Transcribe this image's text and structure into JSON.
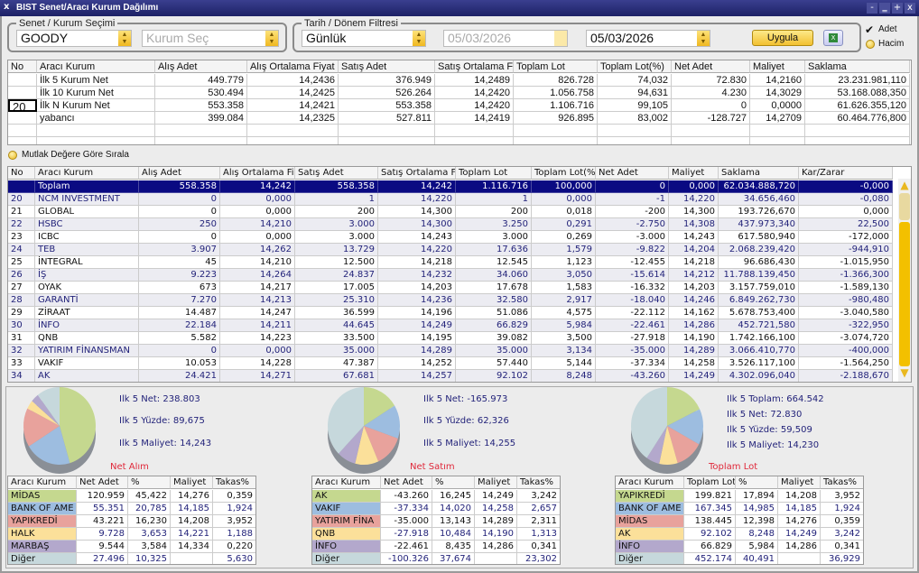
{
  "window": {
    "title": "BIST Senet/Aracı Kurum Dağılımı",
    "close": "x",
    "controls": [
      "-",
      "‗",
      "+",
      "x"
    ]
  },
  "filters": {
    "stock_group_label": "Senet / Kurum Seçimi",
    "stock": "GOODY",
    "broker_placeholder": "Kurum Seç",
    "date_group_label": "Tarih / Dönem Filtresi",
    "period": "Günlük",
    "start_date": "05/03/2026",
    "end_date": "05/03/2026",
    "apply_label": "Uygula",
    "excel_icon": "excel-icon",
    "adet_label": "Adet",
    "adet_checked": true,
    "hacim_label": "Hacim"
  },
  "summary_table": {
    "columns": [
      "No",
      "Aracı Kurum",
      "Alış Adet",
      "Alış Ortalama Fiyat",
      "Satış Adet",
      "Satış Ortalama Fiyat",
      "Toplam Lot",
      "Toplam Lot(%)",
      "Net Adet",
      "Maliyet",
      "Saklama"
    ],
    "rows": [
      [
        "",
        "İlk 5 Kurum Net",
        "449.779",
        "14,2436",
        "376.949",
        "14,2489",
        "826.728",
        "74,032",
        "72.830",
        "14,2160",
        "23.231.981,110"
      ],
      [
        "",
        "İlk 10 Kurum Net",
        "530.494",
        "14,2425",
        "526.264",
        "14,2420",
        "1.056.758",
        "94,631",
        "4.230",
        "14,3029",
        "53.168.088,350"
      ],
      [
        "20",
        "İlk N Kurum Net",
        "553.358",
        "14,2421",
        "553.358",
        "14,2420",
        "1.106.716",
        "99,105",
        "0",
        "0,0000",
        "61.626.355,120"
      ],
      [
        "",
        "yabancı",
        "399.084",
        "14,2325",
        "527.811",
        "14,2419",
        "926.895",
        "83,002",
        "-128.727",
        "14,2709",
        "60.464.776,800"
      ]
    ]
  },
  "sort_option_label": "Mutlak Değere Göre Sırala",
  "broker_table": {
    "columns": [
      "No",
      "Aracı Kurum",
      "Alış Adet",
      "Alış Ortalama Fiy",
      "Satış Adet",
      "Satış Ortalama Fi",
      "Toplam Lot",
      "Toplam Lot(%",
      "Net Adet",
      "Maliyet",
      "Saklama",
      "Kar/Zarar"
    ],
    "rows": [
      [
        "",
        "Toplam",
        "558.358",
        "14,242",
        "558.358",
        "14,242",
        "1.116.716",
        "100,000",
        "0",
        "0,000",
        "62.034.888,720",
        "-0,000"
      ],
      [
        "20",
        "NCM INVESTMENT",
        "0",
        "0,000",
        "1",
        "14,220",
        "1",
        "0,000",
        "-1",
        "14,220",
        "34.656,460",
        "-0,080"
      ],
      [
        "21",
        "GLOBAL",
        "0",
        "0,000",
        "200",
        "14,300",
        "200",
        "0,018",
        "-200",
        "14,300",
        "193.726,670",
        "0,000"
      ],
      [
        "22",
        "HSBC",
        "250",
        "14,210",
        "3.000",
        "14,300",
        "3.250",
        "0,291",
        "-2.750",
        "14,308",
        "437.973,340",
        "22,500"
      ],
      [
        "23",
        "ICBC",
        "0",
        "0,000",
        "3.000",
        "14,243",
        "3.000",
        "0,269",
        "-3.000",
        "14,243",
        "617.580,940",
        "-172,000"
      ],
      [
        "24",
        "TEB",
        "3.907",
        "14,262",
        "13.729",
        "14,220",
        "17.636",
        "1,579",
        "-9.822",
        "14,204",
        "2.068.239,420",
        "-944,910"
      ],
      [
        "25",
        "İNTEGRAL",
        "45",
        "14,210",
        "12.500",
        "14,218",
        "12.545",
        "1,123",
        "-12.455",
        "14,218",
        "96.686,430",
        "-1.015,950"
      ],
      [
        "26",
        "İŞ",
        "9.223",
        "14,264",
        "24.837",
        "14,232",
        "34.060",
        "3,050",
        "-15.614",
        "14,212",
        "11.788.139,450",
        "-1.366,300"
      ],
      [
        "27",
        "OYAK",
        "673",
        "14,217",
        "17.005",
        "14,203",
        "17.678",
        "1,583",
        "-16.332",
        "14,203",
        "3.157.759,010",
        "-1.589,130"
      ],
      [
        "28",
        "GARANTİ",
        "7.270",
        "14,213",
        "25.310",
        "14,236",
        "32.580",
        "2,917",
        "-18.040",
        "14,246",
        "6.849.262,730",
        "-980,480"
      ],
      [
        "29",
        "ZİRAAT",
        "14.487",
        "14,247",
        "36.599",
        "14,196",
        "51.086",
        "4,575",
        "-22.112",
        "14,162",
        "5.678.753,400",
        "-3.040,580"
      ],
      [
        "30",
        "İNFO",
        "22.184",
        "14,211",
        "44.645",
        "14,249",
        "66.829",
        "5,984",
        "-22.461",
        "14,286",
        "452.721,580",
        "-322,950"
      ],
      [
        "31",
        "QNB",
        "5.582",
        "14,223",
        "33.500",
        "14,195",
        "39.082",
        "3,500",
        "-27.918",
        "14,190",
        "1.742.166,100",
        "-3.074,720"
      ],
      [
        "32",
        "YATIRIM FİNANSMAN",
        "0",
        "0,000",
        "35.000",
        "14,289",
        "35.000",
        "3,134",
        "-35.000",
        "14,289",
        "3.066.410,770",
        "-400,000"
      ],
      [
        "33",
        "VAKIF",
        "10.053",
        "14,228",
        "47.387",
        "14,252",
        "57.440",
        "5,144",
        "-37.334",
        "14,258",
        "3.526.117,100",
        "-1.564,250"
      ],
      [
        "34",
        "AK",
        "24.421",
        "14,271",
        "67.681",
        "14,257",
        "92.102",
        "8,248",
        "-43.260",
        "14,249",
        "4.302.096,040",
        "-2.188,670"
      ]
    ]
  },
  "slice_colors": [
    "#c5d88f",
    "#9dbde0",
    "#e8a29c",
    "#fbe09a",
    "#b3a8cc",
    "#c6d8dc"
  ],
  "panels": [
    {
      "title": "Net Alım",
      "stats": [
        "Ilk 5 Net: 238.803",
        "Ilk 5 Yüzde: 89,675",
        "Ilk 5 Maliyet: 14,243"
      ],
      "columns": [
        "Aracı Kurum",
        "Net Adet",
        "%",
        "Maliyet",
        "Takas%"
      ],
      "rows": [
        [
          "MİDAS",
          "120.959",
          "45,422",
          "14,276",
          "0,359"
        ],
        [
          "BANK OF AME",
          "55.351",
          "20,785",
          "14,185",
          "1,924"
        ],
        [
          "YAPIKREDİ",
          "43.221",
          "16,230",
          "14,208",
          "3,952"
        ],
        [
          "HALK",
          "9.728",
          "3,653",
          "14,221",
          "1,188"
        ],
        [
          "MARBAŞ",
          "9.544",
          "3,584",
          "14,334",
          "0,220"
        ],
        [
          "Diğer",
          "27.496",
          "10,325",
          "",
          "5,630"
        ]
      ],
      "pie": [
        45.422,
        20.785,
        16.23,
        3.653,
        3.584,
        10.325
      ]
    },
    {
      "title": "Net Satım",
      "stats": [
        "Ilk 5 Net: -165.973",
        "Ilk 5 Yüzde: 62,326",
        "Ilk 5 Maliyet: 14,255"
      ],
      "columns": [
        "Aracı Kurum",
        "Net Adet",
        "%",
        "Maliyet",
        "Takas%"
      ],
      "rows": [
        [
          "AK",
          "-43.260",
          "16,245",
          "14,249",
          "3,242"
        ],
        [
          "VAKIF",
          "-37.334",
          "14,020",
          "14,258",
          "2,657"
        ],
        [
          "YATIRIM FİNA",
          "-35.000",
          "13,143",
          "14,289",
          "2,311"
        ],
        [
          "QNB",
          "-27.918",
          "10,484",
          "14,190",
          "1,313"
        ],
        [
          "İNFO",
          "-22.461",
          "8,435",
          "14,286",
          "0,341"
        ],
        [
          "Diğer",
          "-100.326",
          "37,674",
          "",
          "23,302"
        ]
      ],
      "pie": [
        16.245,
        14.02,
        13.143,
        10.484,
        8.435,
        37.674
      ]
    },
    {
      "title": "Toplam Lot",
      "stats": [
        "Ilk 5 Toplam: 664.542",
        "Ilk 5 Net: 72.830",
        "Ilk 5 Yüzde: 59,509",
        "Ilk 5 Maliyet: 14,230"
      ],
      "columns": [
        "Aracı Kurum",
        "Toplam Lot",
        "%",
        "Maliyet",
        "Takas%"
      ],
      "rows": [
        [
          "YAPIKREDİ",
          "199.821",
          "17,894",
          "14,208",
          "3,952"
        ],
        [
          "BANK OF AME",
          "167.345",
          "14,985",
          "14,185",
          "1,924"
        ],
        [
          "MİDAS",
          "138.445",
          "12,398",
          "14,276",
          "0,359"
        ],
        [
          "AK",
          "92.102",
          "8,248",
          "14,249",
          "3,242"
        ],
        [
          "İNFO",
          "66.829",
          "5,984",
          "14,286",
          "0,341"
        ],
        [
          "Diğer",
          "452.174",
          "40,491",
          "",
          "36,929"
        ]
      ],
      "pie": [
        17.894,
        14.985,
        12.398,
        8.248,
        5.984,
        40.491
      ]
    }
  ]
}
